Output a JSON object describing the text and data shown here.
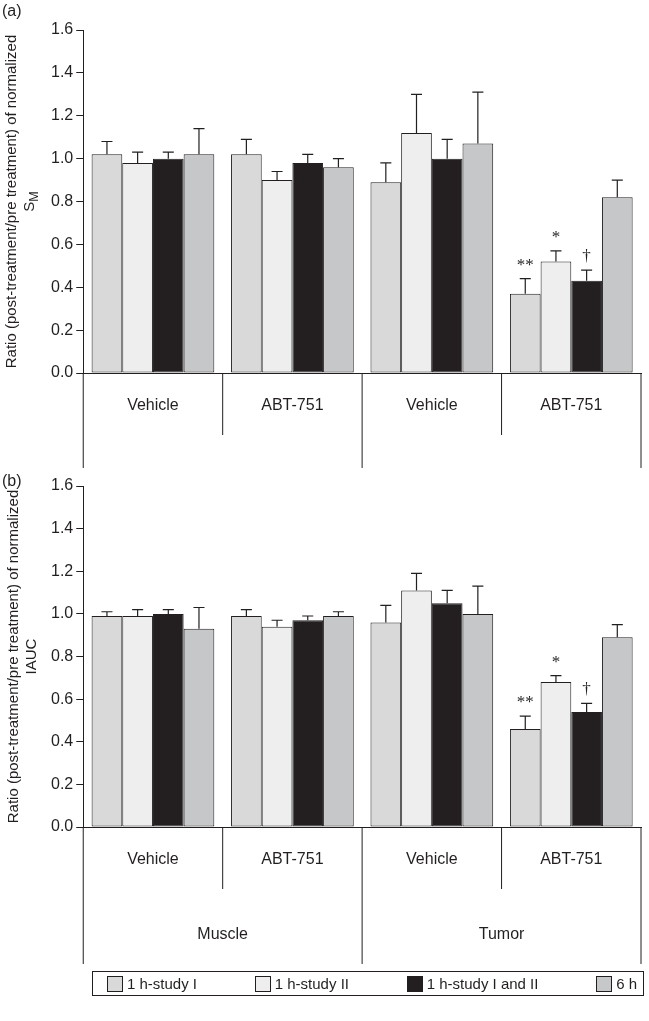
{
  "chart_data": [
    {
      "type": "bar",
      "title": "(a)",
      "ylabel": "Ratio (post-treatment/pre treatment) of normalized S$_{M}$",
      "categories": [
        "Vehicle",
        "ABT-751",
        "Vehicle",
        "ABT-751"
      ],
      "series": [
        {
          "color": "#d9d9d9",
          "values": [
            1.02,
            1.02,
            0.89,
            0.37
          ],
          "errors": [
            [
              1.02,
              1.08
            ],
            [
              1.02,
              1.09
            ],
            [
              0.89,
              0.98
            ],
            [
              0.37,
              0.44
            ]
          ]
        },
        {
          "color": "#eeeeee",
          "values": [
            0.98,
            0.9,
            1.12,
            0.52
          ],
          "errors": [
            [
              0.98,
              1.03
            ],
            [
              0.9,
              0.94
            ],
            [
              1.12,
              1.3
            ],
            [
              0.52,
              0.57
            ]
          ]
        },
        {
          "color": "#231f20",
          "values": [
            1.0,
            0.98,
            1.0,
            0.43
          ],
          "errors": [
            [
              1.0,
              1.03
            ],
            [
              0.98,
              1.02
            ],
            [
              1.0,
              1.09
            ],
            [
              0.43,
              0.48
            ]
          ]
        },
        {
          "color": "#c6c7c9",
          "values": [
            1.02,
            0.96,
            1.07,
            0.82
          ],
          "errors": [
            [
              1.02,
              1.14
            ],
            [
              0.96,
              1.0
            ],
            [
              1.07,
              1.31
            ],
            [
              0.82,
              0.9
            ]
          ]
        }
      ],
      "ylim": [
        0,
        1.6
      ],
      "yticks": [
        {
          "value": 0,
          "label": "0.0"
        },
        {
          "value": 0.2,
          "label": "0.2"
        },
        {
          "value": 0.4,
          "label": "0.4"
        },
        {
          "value": 0.6,
          "label": "0.6"
        },
        {
          "value": 0.8,
          "label": "0.8"
        },
        {
          "value": 1,
          "label": "1.0"
        },
        {
          "value": 1.2,
          "label": "1.2"
        },
        {
          "value": 1.4,
          "label": "1.4"
        },
        {
          "value": 1.6,
          "label": "1.6"
        }
      ],
      "annotations": [
        {
          "text": "**",
          "y": 0.44
        },
        {
          "text": "*",
          "y": 0.57
        },
        {
          "text": "†",
          "y": 0.48
        }
      ]
    },
    {
      "type": "bar",
      "title": "(b)",
      "ylabel": "Ratio (post-treatment/pre treatment) of normalized IAUC",
      "categories": [
        "Vehicle",
        "ABT-751",
        "Vehicle",
        "ABT-751"
      ],
      "series": [
        {
          "name": "1 h-study I",
          "color": "#d9d9d9",
          "values": [
            0.99,
            0.99,
            0.96,
            0.46
          ],
          "errors": [
            [
              0.99,
              1.01
            ],
            [
              0.99,
              1.02
            ],
            [
              0.96,
              1.04
            ],
            [
              0.46,
              0.52
            ]
          ]
        },
        {
          "name": "1 h-study II",
          "color": "#eeeeee",
          "values": [
            0.99,
            0.94,
            1.11,
            0.68
          ],
          "errors": [
            [
              0.99,
              1.02
            ],
            [
              0.94,
              0.97
            ],
            [
              1.11,
              1.19
            ],
            [
              0.68,
              0.71
            ]
          ]
        },
        {
          "name": "1 h-study I and II",
          "color": "#231f20",
          "values": [
            1.0,
            0.97,
            1.05,
            0.54
          ],
          "errors": [
            [
              1.0,
              1.02
            ],
            [
              0.97,
              0.99
            ],
            [
              1.05,
              1.11
            ],
            [
              0.54,
              0.58
            ]
          ]
        },
        {
          "name": "6 h",
          "color": "#c6c7c9",
          "values": [
            0.93,
            0.99,
            1.0,
            0.89
          ],
          "errors": [
            [
              0.93,
              1.03
            ],
            [
              0.99,
              1.01
            ],
            [
              1.0,
              1.13
            ],
            [
              0.89,
              0.95
            ]
          ]
        }
      ],
      "ylim": [
        0,
        1.6
      ],
      "yticks": [
        {
          "value": 0,
          "label": "0.0"
        },
        {
          "value": 0.2,
          "label": "0.2"
        },
        {
          "value": 0.4,
          "label": "0.4"
        },
        {
          "value": 0.6,
          "label": "0.6"
        },
        {
          "value": 0.8,
          "label": "0.8"
        },
        {
          "value": 1,
          "label": "1.0"
        },
        {
          "value": 1.2,
          "label": "1.2"
        },
        {
          "value": 1.4,
          "label": "1.4"
        },
        {
          "value": 1.6,
          "label": "1.6"
        }
      ],
      "annotations": [
        {
          "text": "**",
          "y": 0.52
        },
        {
          "text": "*",
          "y": 0.71
        },
        {
          "text": "†",
          "y": 0.58
        },
        "Muscle",
        "Tumor"
      ],
      "legend": "bottom"
    }
  ]
}
